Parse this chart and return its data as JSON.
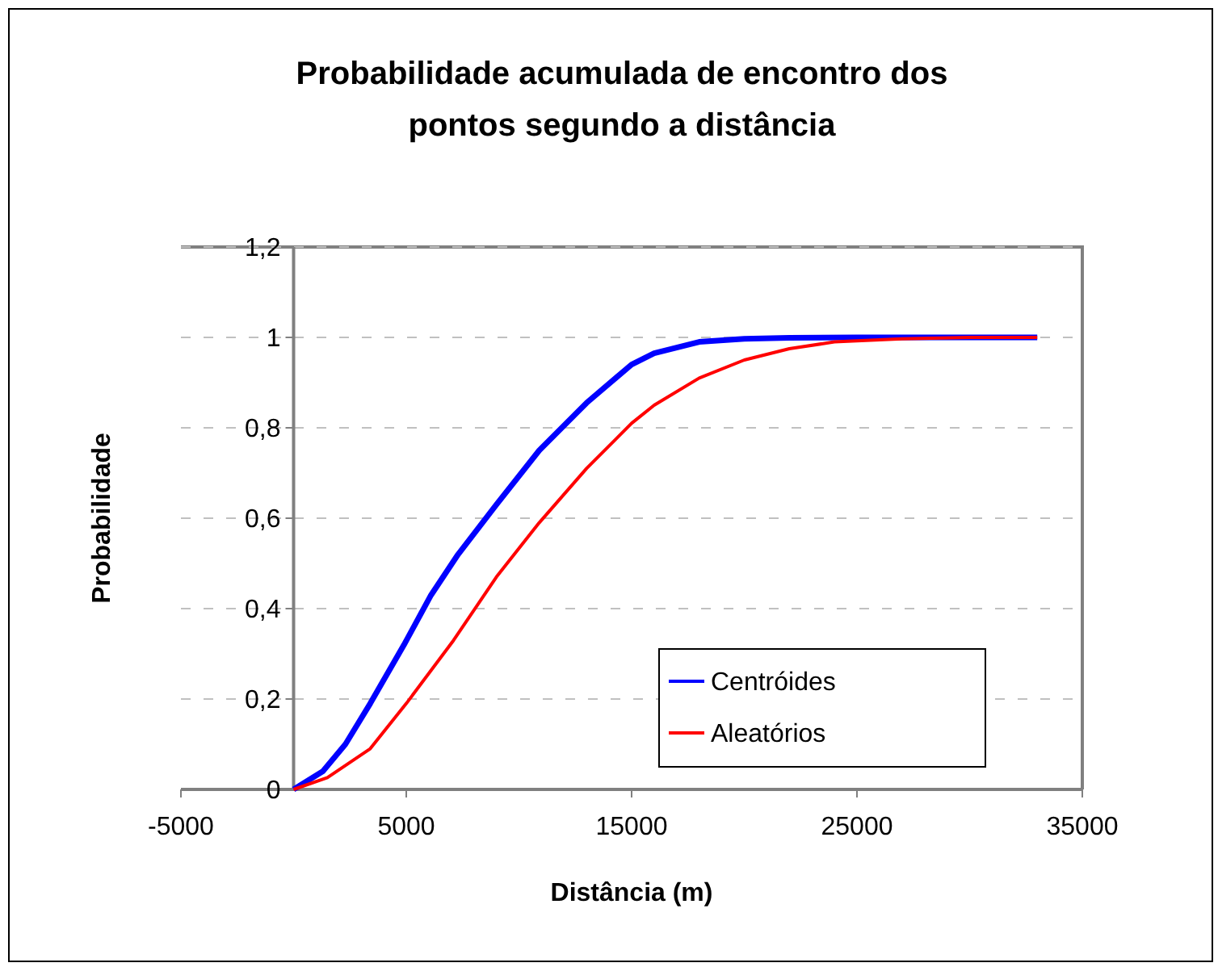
{
  "chart_data": {
    "type": "line",
    "title": "Probabilidade acumulada de encontro dos pontos segundo a distância",
    "xlabel": "Distância (m)",
    "ylabel": "Probabilidade",
    "xlim": [
      -5000,
      35000
    ],
    "xticks": [
      -5000,
      5000,
      15000,
      25000,
      35000
    ],
    "ylim": [
      0,
      1.2
    ],
    "yticks": [
      0,
      {
        "value": 0.2,
        "label": "0,2"
      },
      {
        "value": 0.4,
        "label": "0,4"
      },
      {
        "value": 0.6,
        "label": "0,6"
      },
      {
        "value": 0.8,
        "label": "0,8"
      },
      1,
      {
        "value": 1.2,
        "label": "1,2"
      }
    ],
    "grid": "y",
    "legend": "bottom right",
    "marker": "none",
    "line_style": "solid",
    "series": [
      {
        "name": "Centróides",
        "color": "#0000ff",
        "x": [
          0,
          1300,
          2300,
          3400,
          4900,
          6100,
          7300,
          9000,
          10900,
          13000,
          15000,
          16000,
          18000,
          20000,
          22000,
          25000,
          28000,
          30000,
          33000
        ],
        "values": [
          0,
          0.04,
          0.1,
          0.19,
          0.32,
          0.43,
          0.52,
          0.63,
          0.75,
          0.855,
          0.94,
          0.965,
          0.99,
          0.997,
          0.999,
          1,
          1,
          1,
          1
        ]
      },
      {
        "name": "Aleatórios",
        "color": "#ff0000",
        "x": [
          0,
          1500,
          3400,
          5000,
          7100,
          9000,
          10900,
          13000,
          15000,
          16000,
          18000,
          20000,
          22000,
          24000,
          27000,
          30000,
          33000
        ],
        "values": [
          0,
          0.026,
          0.09,
          0.19,
          0.33,
          0.47,
          0.59,
          0.71,
          0.81,
          0.85,
          0.91,
          0.95,
          0.975,
          0.99,
          0.997,
          1,
          1
        ]
      }
    ]
  }
}
